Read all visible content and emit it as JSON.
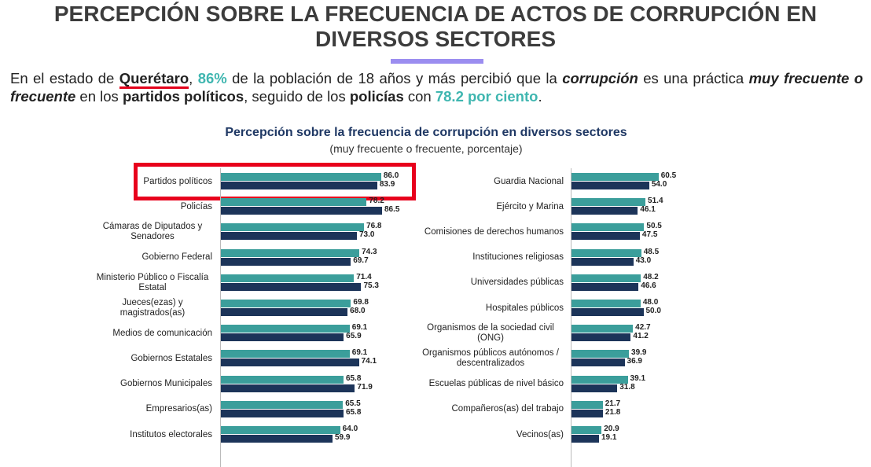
{
  "header": {
    "title": "PERCEPCIÓN SOBRE LA FRECUENCIA DE ACTOS DE CORRUPCIÓN EN DIVERSOS SECTORES",
    "paragraph": [
      "En el estado de ",
      "Querétaro",
      ", ",
      "86%",
      " de la población de 18 años y más percibió que la ",
      "corrupción",
      " es una práctica ",
      "muy frecuente o frecuente",
      " en los ",
      "partidos políticos",
      ", seguido de los ",
      "policías",
      " con ",
      "78.2 por ciento",
      "."
    ]
  },
  "figure": {
    "title": "Percepción sobre la frecuencia de corrupción en diversos sectores",
    "subtitle": "(muy frecuente o frecuente, porcentaje)"
  },
  "chart_data": [
    {
      "type": "hbar",
      "categories": [
        "Partidos políticos",
        "Policías",
        "Cámaras de Diputados y Senadores",
        "Gobierno Federal",
        "Ministerio Público o Fiscalía Estatal",
        "Jueces(ezas) y magistrados(as)",
        "Medios de comunicación",
        "Gobiernos Estatales",
        "Gobiernos Municipales",
        "Empresarios(as)",
        "Institutos electorales"
      ],
      "series": [
        {
          "color": "#3b9e9b",
          "values": [
            86.0,
            78.2,
            76.8,
            74.3,
            71.4,
            69.8,
            69.1,
            69.1,
            65.8,
            65.5,
            64.0
          ],
          "value_labels": [
            "86.0",
            "78.2",
            "76.8",
            "74.3",
            "71.4",
            "69.8",
            "69.1",
            "69.1",
            "65.8",
            "65.5",
            "64.0"
          ]
        },
        {
          "color": "#1c3459",
          "values": [
            83.9,
            86.5,
            73.0,
            69.7,
            75.3,
            68.0,
            65.9,
            74.1,
            71.9,
            65.8,
            59.9
          ],
          "value_labels": [
            "83.9",
            "86.5",
            "73.0",
            "69.7",
            "75.3",
            "68.0",
            "65.9",
            "74.1",
            "71.9",
            "65.8",
            "59.9"
          ]
        }
      ],
      "xlim": [
        0,
        100
      ]
    },
    {
      "type": "hbar",
      "categories": [
        "Guardia Nacional",
        "Ejército y Marina",
        "Comisiones de derechos humanos",
        "Instituciones religiosas",
        "Universidades públicas",
        "Hospitales públicos",
        "Organismos de la sociedad civil (ONG)",
        "Organismos públicos autónomos / descentralizados",
        "Escuelas públicas de nivel básico",
        "Compañeros(as) del trabajo",
        "Vecinos(as)"
      ],
      "series": [
        {
          "color": "#3b9e9b",
          "values": [
            60.5,
            51.4,
            50.5,
            48.5,
            48.2,
            48.0,
            42.7,
            39.9,
            39.1,
            21.7,
            20.9
          ],
          "value_labels": [
            "60.5",
            "51.4",
            "50.5",
            "48.5",
            "48.2",
            "48.0",
            "42.7",
            "39.9",
            "39.1",
            "21.7",
            "20.9"
          ]
        },
        {
          "color": "#1c3459",
          "values": [
            54.0,
            46.1,
            47.5,
            43.0,
            46.6,
            50.0,
            41.2,
            36.9,
            31.8,
            21.8,
            19.1
          ],
          "value_labels": [
            "54.0",
            "46.1",
            "47.5",
            "43.0",
            "46.6",
            "50.0",
            "41.2",
            "36.9",
            "31.8",
            "21.8",
            "19.1"
          ]
        }
      ],
      "xlim": [
        0,
        100
      ]
    }
  ]
}
